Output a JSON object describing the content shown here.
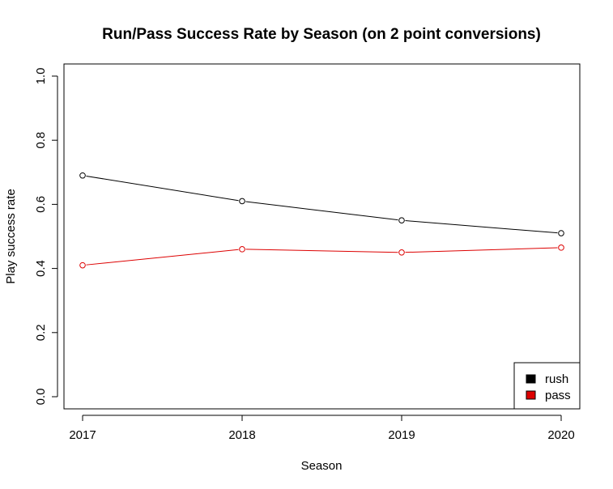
{
  "chart_data": {
    "type": "line",
    "title": "Run/Pass Success Rate by Season (on 2 point conversions)",
    "xlabel": "Season",
    "ylabel": "Play success rate",
    "x": [
      2017,
      2018,
      2019,
      2020
    ],
    "x_tick_labels": [
      "2017",
      "2018",
      "2019",
      "2020"
    ],
    "y_tick_labels": [
      "0.0",
      "0.2",
      "0.4",
      "0.6",
      "0.8",
      "1.0"
    ],
    "ylim": [
      0,
      1
    ],
    "series": [
      {
        "name": "rush",
        "color": "#000000",
        "values": [
          0.69,
          0.61,
          0.55,
          0.51
        ]
      },
      {
        "name": "pass",
        "color": "#dd0000",
        "values": [
          0.41,
          0.46,
          0.45,
          0.465
        ]
      }
    ],
    "legend": {
      "position": "bottom-right",
      "entries": [
        "rush",
        "pass"
      ]
    },
    "grid": false
  }
}
